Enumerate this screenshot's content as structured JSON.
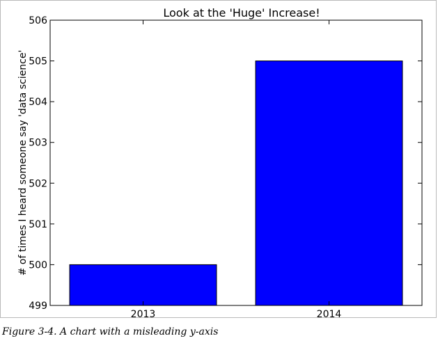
{
  "chart_data": {
    "type": "bar",
    "title": "Look at the 'Huge' Increase!",
    "xlabel": "",
    "ylabel": "# of times I heard someone say 'data science'",
    "categories": [
      "2013",
      "2014"
    ],
    "values": [
      500,
      505
    ],
    "ylim": [
      499,
      506
    ],
    "yticks": [
      "499",
      "500",
      "501",
      "502",
      "503",
      "504",
      "505",
      "506"
    ],
    "bar_color": "#0000ff",
    "grid": false,
    "legend": "none"
  },
  "caption": "Figure 3-4. A chart with a misleading y-axis"
}
